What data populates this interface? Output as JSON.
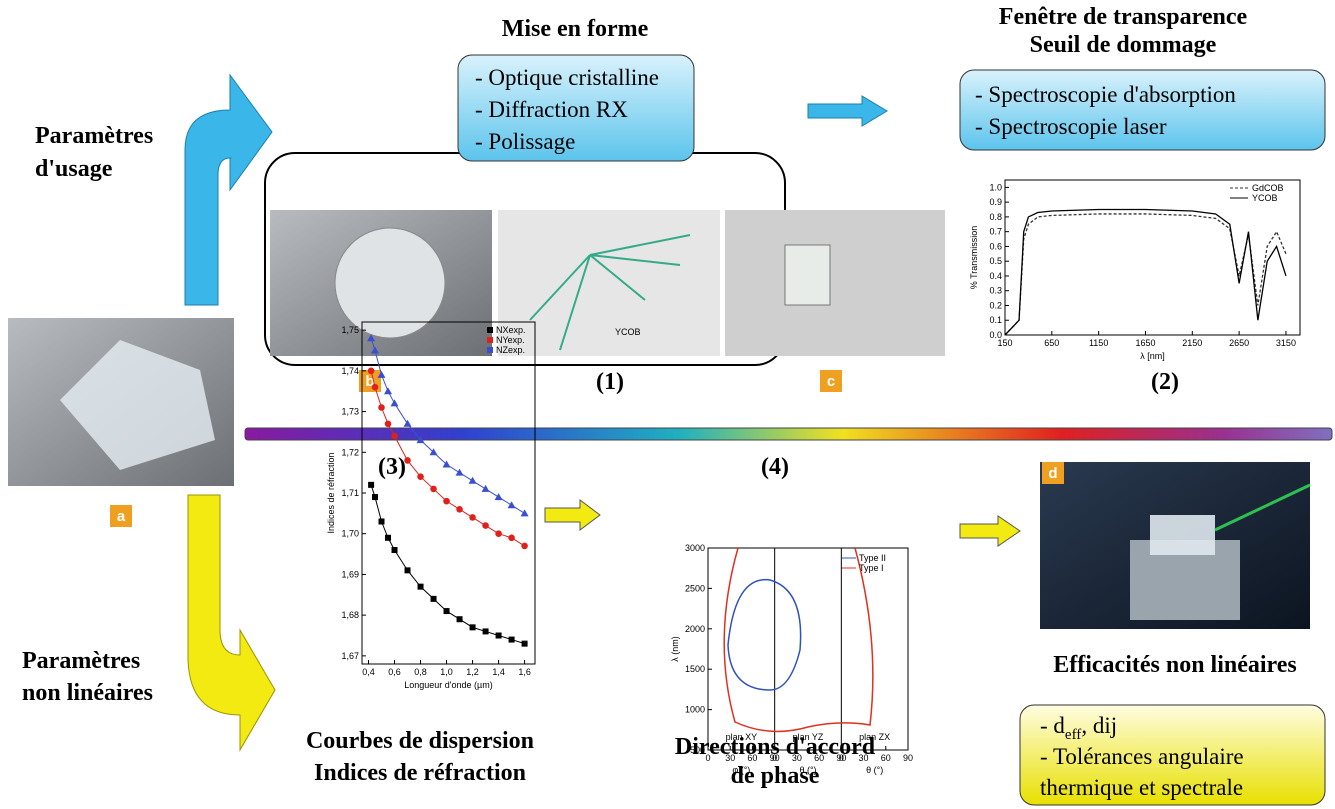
{
  "left": {
    "usage": [
      "Paramètres",
      "d'usage"
    ],
    "nonlinear": [
      "Paramètres",
      "non linéaires"
    ],
    "photo_label": "a"
  },
  "shaping": {
    "title": "Mise en forme",
    "items": [
      "- Optique cristalline",
      "- Diffraction RX",
      "- Polissage"
    ],
    "labels": [
      "b",
      "(1)",
      "c"
    ],
    "diagram_text": "YCOB"
  },
  "transparency": {
    "title": [
      "Fenêtre de transparence",
      "Seuil de dommage"
    ],
    "items": [
      "- Spectroscopie d'absorption",
      "- Spectroscopie laser"
    ],
    "label": "(2)",
    "chart": {
      "type": "line",
      "x_label": "λ [nm]",
      "y_label": "% Transmission",
      "x": [
        150,
        300,
        350,
        400,
        500,
        650,
        1150,
        1650,
        2150,
        2400,
        2550,
        2650,
        2750,
        2850,
        2950,
        3050,
        3150
      ],
      "series": [
        {
          "name": "GdCOB",
          "color": "#333333",
          "values": [
            0.0,
            0.1,
            0.65,
            0.75,
            0.8,
            0.81,
            0.82,
            0.82,
            0.81,
            0.79,
            0.72,
            0.4,
            0.68,
            0.2,
            0.6,
            0.7,
            0.55
          ]
        },
        {
          "name": "YCOB",
          "color": "#000000",
          "values": [
            0.0,
            0.1,
            0.7,
            0.8,
            0.83,
            0.84,
            0.85,
            0.85,
            0.84,
            0.82,
            0.75,
            0.35,
            0.7,
            0.1,
            0.5,
            0.6,
            0.4
          ]
        }
      ],
      "xlim": [
        150,
        3300
      ],
      "ylim": [
        0,
        1.05
      ],
      "xticks": [
        150,
        650,
        1150,
        1650,
        2150,
        2650,
        3150
      ],
      "yticks": [
        {
          "value": 0,
          "label": "0.0"
        },
        0.1,
        0.2,
        0.3,
        0.4,
        0.5,
        0.6,
        0.7,
        0.8,
        0.9,
        {
          "value": 1,
          "label": "1.0"
        }
      ]
    }
  },
  "dispersion": {
    "label": "(3)",
    "caption": [
      "Courbes de dispersion",
      "Indices de réfraction"
    ],
    "chart": {
      "type": "scatter",
      "x_label": "Longueur d'onde (µm)",
      "y_label": "Indices de réfraction",
      "x": [
        0.42,
        0.45,
        0.5,
        0.55,
        0.6,
        0.7,
        0.8,
        0.9,
        1.0,
        1.1,
        1.2,
        1.3,
        1.4,
        1.5,
        1.6
      ],
      "series": [
        {
          "name": "NXexp.",
          "color": "#000000",
          "values": [
            1.712,
            1.709,
            1.703,
            1.699,
            1.696,
            1.691,
            1.687,
            1.684,
            1.681,
            1.679,
            1.677,
            1.676,
            1.675,
            1.674,
            1.673
          ]
        },
        {
          "name": "NYexp.",
          "color": "#e0201b",
          "values": [
            1.74,
            1.736,
            1.731,
            1.727,
            1.724,
            1.718,
            1.714,
            1.711,
            1.708,
            1.706,
            1.704,
            1.702,
            1.7,
            1.699,
            1.697
          ]
        },
        {
          "name": "NZexp.",
          "color": "#3a4fd0",
          "values": [
            1.748,
            1.745,
            1.739,
            1.735,
            1.732,
            1.727,
            1.723,
            1.72,
            1.717,
            1.715,
            1.713,
            1.711,
            1.709,
            1.707,
            1.705
          ]
        }
      ],
      "xlim": [
        0.35,
        1.68
      ],
      "ylim": [
        1.668,
        1.752
      ],
      "xticks": [
        {
          "value": 0.4,
          "label": "0,4"
        },
        {
          "value": 0.6,
          "label": "0,6"
        },
        {
          "value": 0.8,
          "label": "0,8"
        },
        {
          "value": 1.0,
          "label": "1,0"
        },
        {
          "value": 1.2,
          "label": "1,2"
        },
        {
          "value": 1.4,
          "label": "1,4"
        },
        {
          "value": 1.6,
          "label": "1,6"
        }
      ],
      "yticks": [
        {
          "value": 1.67,
          "label": "1,67"
        },
        {
          "value": 1.68,
          "label": "1,68"
        },
        {
          "value": 1.69,
          "label": "1,69"
        },
        {
          "value": 1.7,
          "label": "1,70"
        },
        {
          "value": 1.71,
          "label": "1,71"
        },
        {
          "value": 1.72,
          "label": "1,72"
        },
        {
          "value": 1.73,
          "label": "1,73"
        },
        {
          "value": 1.74,
          "label": "1,74"
        },
        {
          "value": 1.75,
          "label": "1,75"
        }
      ]
    }
  },
  "phase": {
    "label": "(4)",
    "caption": [
      "Directions d'accord",
      "de phase"
    ],
    "chart": {
      "y_label": "λ (nm)",
      "legend": [
        "Type II",
        "Type I"
      ],
      "panels": [
        "plan XY",
        "plan YZ",
        "plan ZX"
      ],
      "x_labels": [
        "φ (°)",
        "θ (°)",
        "θ (°)"
      ],
      "ylim": [
        500,
        3000
      ],
      "yticks": [
        500,
        1000,
        1500,
        2000,
        2500,
        3000
      ],
      "xlim": [
        0,
        90
      ],
      "xticks": [
        0,
        30,
        60,
        90
      ]
    }
  },
  "efficiency": {
    "photo_label": "d",
    "title": "Efficacités non linéaires",
    "items": [
      "- d",
      "eff",
      ", dij",
      "- Tolérances angulaire",
      "thermique et spectrale"
    ]
  }
}
